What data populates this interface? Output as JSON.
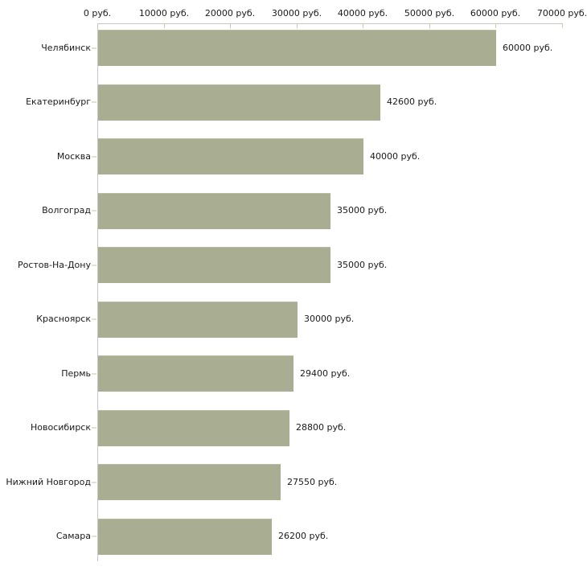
{
  "chart_data": {
    "type": "bar",
    "orientation": "horizontal",
    "title": "",
    "categories": [
      "Челябинск",
      "Екатеринбург",
      "Москва",
      "Волгоград",
      "Ростов-На-Дону",
      "Красноярск",
      "Пермь",
      "Новосибирск",
      "Нижний Новгород",
      "Самара"
    ],
    "values": [
      60000,
      42600,
      40000,
      35000,
      35000,
      30000,
      29400,
      28800,
      27550,
      26200
    ],
    "value_labels": [
      "60000 руб.",
      "42600 руб.",
      "40000 руб.",
      "35000 руб.",
      "35000 руб.",
      "30000 руб.",
      "29400 руб.",
      "28800 руб.",
      "27550 руб.",
      "26200 руб."
    ],
    "unit": "руб.",
    "x_axis": {
      "position": "top",
      "ticks": [
        0,
        10000,
        20000,
        30000,
        40000,
        50000,
        60000,
        70000
      ],
      "tick_labels": [
        "0 руб.",
        "10000 руб.",
        "20000 руб.",
        "30000 руб.",
        "40000 руб.",
        "50000 руб.",
        "60000 руб.",
        "70000 руб."
      ]
    },
    "xlim": [
      0,
      70000
    ],
    "ylabel": "",
    "xlabel": "",
    "grid": false,
    "legend": false,
    "colors": {
      "bar": "#a9ae93",
      "bar_top_edge": "#b8bca3",
      "axis_line": "#c6c6c6",
      "axis_tick": "#cfcba4",
      "text": "#1a1a1a",
      "background": "#ffffff"
    }
  }
}
